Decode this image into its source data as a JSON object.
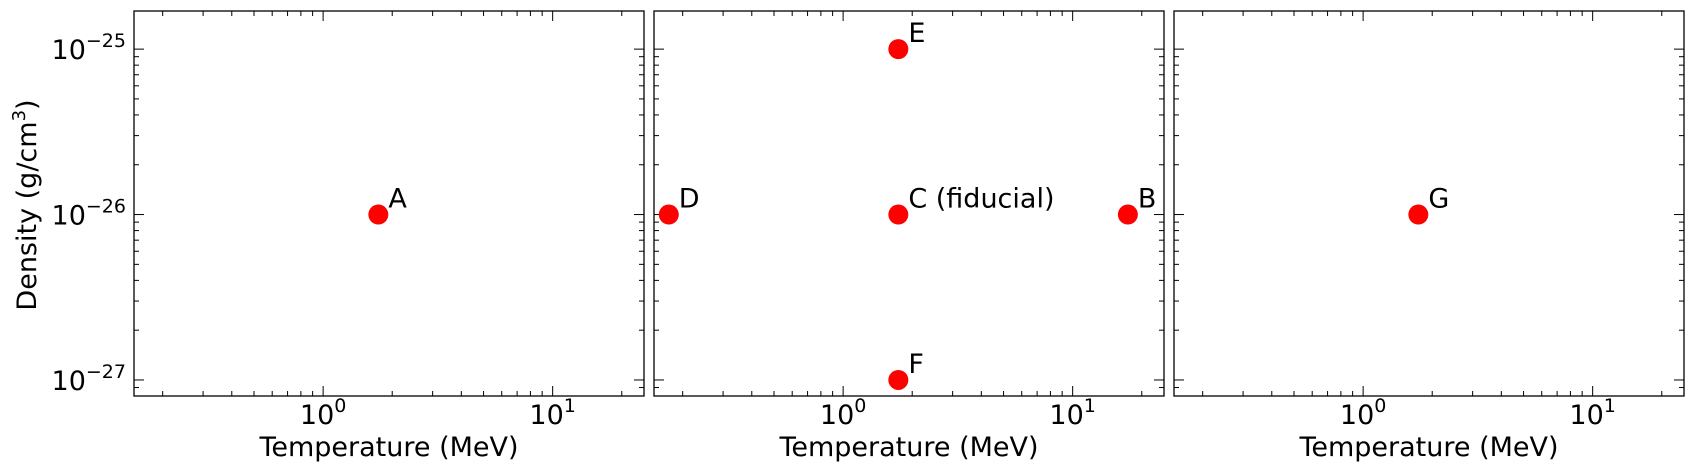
{
  "figure": {
    "ylabel_text": "Density (g/cm",
    "ylabel_sup": "3",
    "ylabel_close": ")"
  },
  "chart_data": [
    {
      "type": "scatter",
      "xscale": "log",
      "yscale": "log",
      "xlim": [
        0.15,
        25
      ],
      "ylim": [
        8e-28,
        1.7e-25
      ],
      "xlabel": "Temperature (MeV)",
      "ylabel": "Density (g/cm3)",
      "xticks": [
        {
          "base": "10",
          "exp": "0",
          "value": 1
        },
        {
          "base": "10",
          "exp": "1",
          "value": 10
        }
      ],
      "yticks": [
        {
          "base": "10",
          "exp": "−25",
          "value": 1e-25
        },
        {
          "base": "10",
          "exp": "−26",
          "value": 1e-26
        },
        {
          "base": "10",
          "exp": "−27",
          "value": 1e-27
        }
      ],
      "grid": false,
      "marker_color": "#ff0000",
      "points": [
        {
          "x": 1.74,
          "y": 1e-26,
          "label": "A"
        }
      ]
    },
    {
      "type": "scatter",
      "xscale": "log",
      "yscale": "log",
      "xlim": [
        0.15,
        25
      ],
      "ylim": [
        8e-28,
        1.7e-25
      ],
      "xlabel": "Temperature (MeV)",
      "xticks": [
        {
          "base": "10",
          "exp": "0",
          "value": 1
        },
        {
          "base": "10",
          "exp": "1",
          "value": 10
        }
      ],
      "grid": false,
      "marker_color": "#ff0000",
      "points": [
        {
          "x": 0.174,
          "y": 1e-26,
          "label": "D"
        },
        {
          "x": 1.74,
          "y": 1e-26,
          "label": "C (fiducial)"
        },
        {
          "x": 17.4,
          "y": 1e-26,
          "label": "B"
        },
        {
          "x": 1.74,
          "y": 1e-25,
          "label": "E"
        },
        {
          "x": 1.74,
          "y": 1e-27,
          "label": "F"
        }
      ]
    },
    {
      "type": "scatter",
      "xscale": "log",
      "yscale": "log",
      "xlim": [
        0.15,
        25
      ],
      "ylim": [
        8e-28,
        1.7e-25
      ],
      "xlabel": "Temperature (MeV)",
      "xticks": [
        {
          "base": "10",
          "exp": "0",
          "value": 1
        },
        {
          "base": "10",
          "exp": "1",
          "value": 10
        }
      ],
      "grid": false,
      "marker_color": "#ff0000",
      "points": [
        {
          "x": 1.74,
          "y": 1e-26,
          "label": "G"
        }
      ]
    }
  ]
}
